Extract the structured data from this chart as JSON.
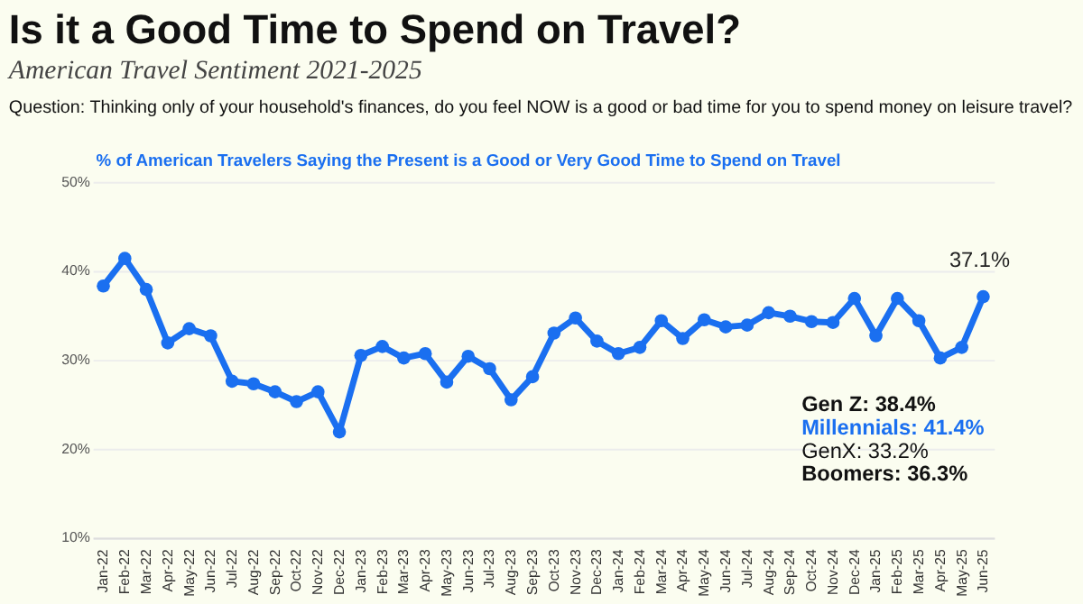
{
  "chart_data": {
    "type": "line",
    "title": "Is it a Good Time to Spend on Travel?",
    "subtitle": "American Travel Sentiment 2021-2025",
    "categories": [
      "Jan-22",
      "Feb-22",
      "Mar-22",
      "Apr-22",
      "May-22",
      "Jun-22",
      "Jul-22",
      "Aug-22",
      "Sep-22",
      "Oct-22",
      "Nov-22",
      "Dec-22",
      "Jan-23",
      "Feb-23",
      "Mar-23",
      "Apr-23",
      "May-23",
      "Jun-23",
      "Jul-23",
      "Aug-23",
      "Sep-23",
      "Oct-23",
      "Nov-23",
      "Dec-23",
      "Jan-24",
      "Feb-24",
      "Mar-24",
      "Apr-24",
      "May-24",
      "Jun-24",
      "Jul-24",
      "Aug-24",
      "Sep-24",
      "Oct-24",
      "Nov-24",
      "Dec-24",
      "Jan-25",
      "Feb-25",
      "Mar-25",
      "Apr-25",
      "May-25",
      "Jun-25"
    ],
    "series": [
      {
        "color": "#1a6ff0",
        "values": [
          38.3,
          41.4,
          37.9,
          31.9,
          33.5,
          32.7,
          27.6,
          27.3,
          26.4,
          25.3,
          26.4,
          21.9,
          30.5,
          31.5,
          30.2,
          30.7,
          27.5,
          30.4,
          29.0,
          25.5,
          28.1,
          33.0,
          34.7,
          32.1,
          30.7,
          31.4,
          34.4,
          32.4,
          34.5,
          33.7,
          33.9,
          35.3,
          34.9,
          34.3,
          34.2,
          36.9,
          32.7,
          36.9,
          34.4,
          30.2,
          31.4,
          37.1
        ]
      }
    ],
    "ylim": [
      10,
      50
    ],
    "yticks": [
      {
        "value": 10,
        "label": "10%"
      },
      {
        "value": 20,
        "label": "20%"
      },
      {
        "value": 30,
        "label": "30%"
      },
      {
        "value": 40,
        "label": "40%"
      },
      {
        "value": 50,
        "label": "50%"
      }
    ],
    "grid": "y",
    "marker": "circle",
    "line_style": "solid",
    "annotations": [
      "Question: Thinking only of your household's finances, do you feel NOW is a good or bad time for you to spend money on leisure travel?",
      "% of American Travelers Saying the Present is a Good or Very Good Time to Spend on Travel",
      "Gen Z: 38.4%",
      "Millennials: 41.4%",
      "GenX: 33.2%",
      "Boomers: 36.3%",
      {
        "text": "37.1%",
        "x": "Jun-25",
        "y": 37.1
      }
    ]
  }
}
